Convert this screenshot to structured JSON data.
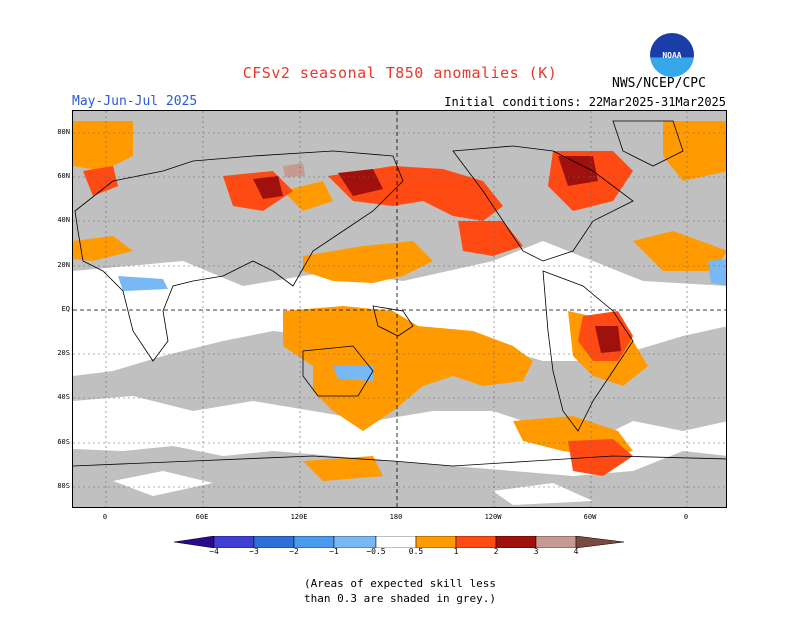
{
  "header": {
    "title": "CFSv2 seasonal T850 anomalies (K)",
    "agency": "NWS/NCEP/CPC",
    "logo_text": "NOAA",
    "season": "May-Jun-Jul 2025",
    "initial_conditions": "Initial conditions: 22Mar2025-31Mar2025"
  },
  "map": {
    "y_axis_labels": [
      "80N",
      "60N",
      "40N",
      "20N",
      "EQ",
      "20S",
      "40S",
      "60S",
      "80S"
    ],
    "x_axis_labels": [
      "0",
      "60E",
      "120E",
      "180",
      "120W",
      "60W",
      "0"
    ],
    "center_longitude_label": "180",
    "equator_label": "EQ"
  },
  "legend": {
    "labels": [
      "−4",
      "−3",
      "−2",
      "−1",
      "−0.5",
      "0.5",
      "1",
      "2",
      "3",
      "4"
    ],
    "colors": {
      "lt_m4": "#2a0a8a",
      "m4_m3": "#3f3fd6",
      "m3_m2": "#2f6fd8",
      "m2_m1": "#4a9af0",
      "m1_m05": "#78b8f5",
      "neutral": "#ffffff",
      "p05_p1": "#ff9a00",
      "p1_p2": "#ff4a14",
      "p2_p3": "#a0100c",
      "p3_p4": "#c69a90",
      "gt_p4": "#7a4a40"
    }
  },
  "colors": {
    "low_skill": "#c0c0c0"
  },
  "footnote": {
    "line1": "(Areas of expected skill less",
    "line2": "than 0.3 are shaded in grey.)"
  }
}
